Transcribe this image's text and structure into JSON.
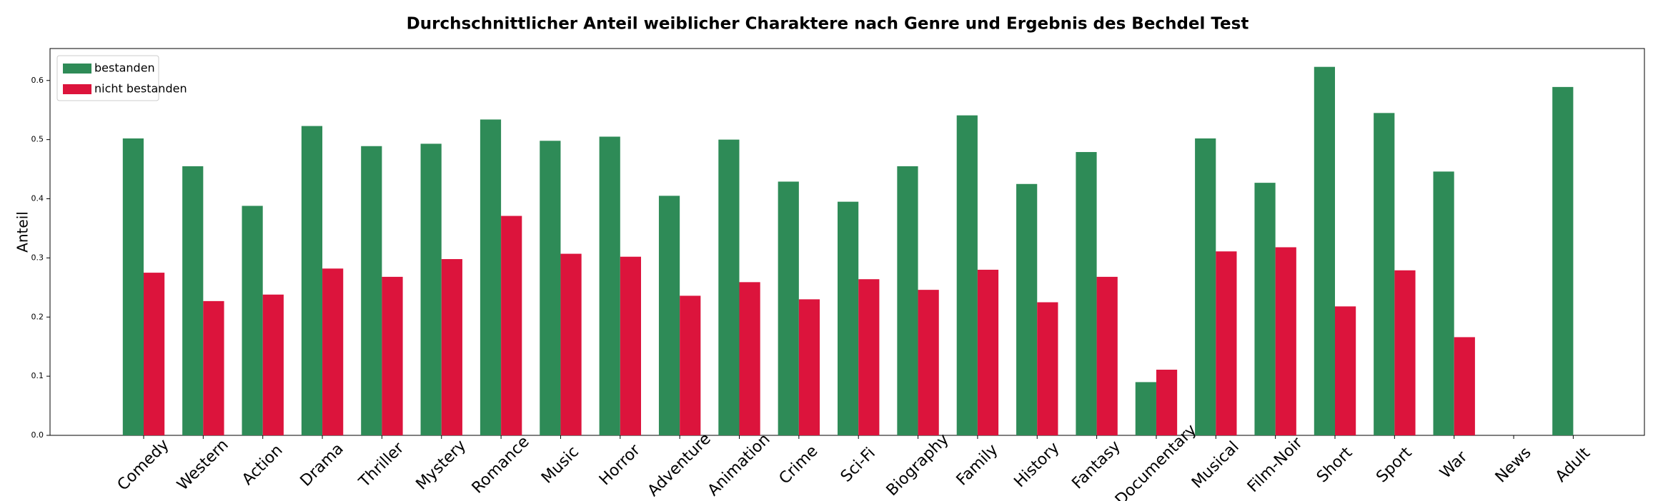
{
  "chart_data": {
    "type": "bar",
    "title": "Durchschnittlicher Anteil weiblicher Charaktere nach Genre und Ergebnis des Bechdel Test",
    "y_label": "Anteil",
    "categories": [
      "Comedy",
      "Western",
      "Action",
      "Drama",
      "Thriller",
      "Mystery",
      "Romance",
      "Music",
      "Horror",
      "Adventure",
      "Animation",
      "Crime",
      "Sci-Fi",
      "Biography",
      "Family",
      "History",
      "Fantasy",
      "Documentary",
      "Musical",
      "Film-Noir",
      "Short",
      "Sport",
      "War",
      "News",
      "Adult"
    ],
    "series": [
      {
        "name": "bestanden",
        "color": "#2e8b57",
        "values": [
          0.502,
          0.455,
          0.388,
          0.523,
          0.489,
          0.493,
          0.534,
          0.498,
          0.505,
          0.405,
          0.5,
          0.429,
          0.395,
          0.455,
          0.541,
          0.425,
          0.479,
          0.09,
          0.502,
          0.427,
          0.623,
          0.545,
          0.446,
          null,
          0.589
        ]
      },
      {
        "name": "nicht bestanden",
        "color": "#dc143c",
        "values": [
          0.275,
          0.227,
          0.238,
          0.282,
          0.268,
          0.298,
          0.371,
          0.307,
          0.302,
          0.236,
          0.259,
          0.23,
          0.264,
          0.246,
          0.28,
          0.225,
          0.268,
          0.111,
          0.311,
          0.318,
          0.218,
          0.279,
          0.166,
          null,
          null
        ]
      }
    ],
    "ylim": [
      0,
      0.654
    ],
    "yticks": [
      {
        "value": 0,
        "label": "0.0"
      },
      0.1,
      0.2,
      0.3,
      0.4,
      0.5,
      0.6
    ],
    "grid": false,
    "legend": "upper left"
  }
}
